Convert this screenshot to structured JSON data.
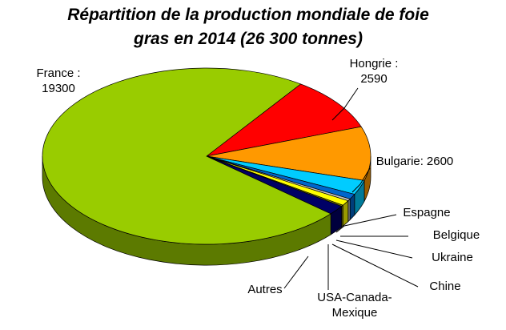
{
  "chart_data": {
    "type": "pie3d",
    "title": "Répartition de la production mondiale de foie gras en 2014 (26 300 tonnes)",
    "categories": [
      "France :",
      "Hongrie :",
      "Bulgarie:",
      "Espagne",
      "Belgique",
      "Ukraine",
      "Chine",
      "USA-Canada-Mexique",
      "Autres"
    ],
    "values": [
      19300,
      2590,
      2600,
      700,
      250,
      100,
      250,
      60,
      450
    ],
    "colors": [
      "#99cc00",
      "#ff0000",
      "#ff9900",
      "#00ccff",
      "#0066cc",
      "#c0c0c0",
      "#ffff00",
      "#808000",
      "#000066"
    ],
    "printed_values": [
      true,
      true,
      true,
      false,
      false,
      false,
      false,
      false,
      false
    ]
  }
}
